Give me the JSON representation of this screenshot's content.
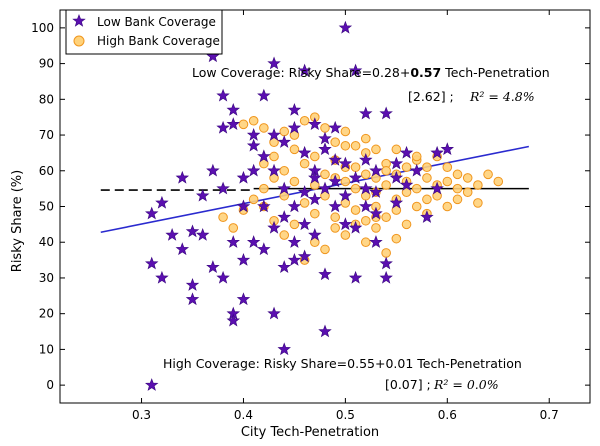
{
  "chart_data": {
    "type": "scatter",
    "xlabel": "City Tech-Penetration",
    "ylabel": "Risky Share (%)",
    "xlim": [
      0.22,
      0.74
    ],
    "ylim": [
      -5,
      105
    ],
    "x_ticks": [
      "0.3",
      "0.4",
      "0.5",
      "0.6",
      "0.7"
    ],
    "x_tick_values": [
      0.3,
      0.4,
      0.5,
      0.6,
      0.7
    ],
    "y_ticks": [
      "0",
      "10",
      "20",
      "30",
      "40",
      "50",
      "60",
      "70",
      "80",
      "90",
      "100"
    ],
    "y_tick_values": [
      0,
      10,
      20,
      30,
      40,
      50,
      60,
      70,
      80,
      90,
      100
    ],
    "legend": {
      "placement": "top-left",
      "entries": [
        {
          "label": "Low Bank Coverage",
          "marker": "star",
          "color": "#5b0fb0"
        },
        {
          "label": "High Bank Coverage",
          "marker": "circle",
          "color": "#ffd27a"
        }
      ]
    },
    "annotations": {
      "low": {
        "prefix": "Low Coverage: Risky Share=0.28+",
        "bold": "0.57",
        "suffix": " Tech-Penetration",
        "stat": "[2.62] ;",
        "r2": "R² = 4.8%"
      },
      "high": {
        "line": "High Coverage: Risky Share=0.55+0.01 Tech-Penetration",
        "stat": "[0.07] ;",
        "r2": "R² = 0.0%"
      }
    },
    "fits": [
      {
        "series": "Low Bank Coverage",
        "style": "solid",
        "color": "#2a2acf",
        "x": [
          0.26,
          0.68
        ],
        "y": [
          42.8,
          66.8
        ]
      },
      {
        "series": "High Bank Coverage",
        "style": "dashed",
        "color": "#000000",
        "x": [
          0.26,
          0.41
        ],
        "y": [
          54.6,
          54.6
        ]
      },
      {
        "series": "High Bank Coverage",
        "style": "solid",
        "color": "#000000",
        "x": [
          0.41,
          0.68
        ],
        "y": [
          55.0,
          55.0
        ]
      }
    ],
    "series": [
      {
        "name": "High Bank Coverage",
        "marker": "circle",
        "fill": "#ffd27a",
        "stroke": "#f0961e",
        "points": [
          [
            0.38,
            47
          ],
          [
            0.39,
            44
          ],
          [
            0.4,
            49
          ],
          [
            0.41,
            52
          ],
          [
            0.42,
            50
          ],
          [
            0.42,
            55
          ],
          [
            0.43,
            58
          ],
          [
            0.43,
            46
          ],
          [
            0.44,
            53
          ],
          [
            0.44,
            60
          ],
          [
            0.45,
            45
          ],
          [
            0.45,
            57
          ],
          [
            0.46,
            51
          ],
          [
            0.46,
            62
          ],
          [
            0.47,
            48
          ],
          [
            0.47,
            56
          ],
          [
            0.48,
            53
          ],
          [
            0.48,
            59
          ],
          [
            0.49,
            47
          ],
          [
            0.49,
            63
          ],
          [
            0.5,
            51
          ],
          [
            0.5,
            57
          ],
          [
            0.5,
            67
          ],
          [
            0.51,
            49
          ],
          [
            0.51,
            55
          ],
          [
            0.51,
            61
          ],
          [
            0.52,
            46
          ],
          [
            0.52,
            53
          ],
          [
            0.52,
            65
          ],
          [
            0.53,
            50
          ],
          [
            0.53,
            58
          ],
          [
            0.53,
            54
          ],
          [
            0.54,
            47
          ],
          [
            0.54,
            62
          ],
          [
            0.54,
            56
          ],
          [
            0.55,
            52
          ],
          [
            0.55,
            59
          ],
          [
            0.55,
            49
          ],
          [
            0.56,
            54
          ],
          [
            0.56,
            61
          ],
          [
            0.56,
            57
          ],
          [
            0.57,
            50
          ],
          [
            0.57,
            55
          ],
          [
            0.57,
            63
          ],
          [
            0.58,
            52
          ],
          [
            0.58,
            58
          ],
          [
            0.58,
            48
          ],
          [
            0.59,
            56
          ],
          [
            0.59,
            53
          ],
          [
            0.6,
            57
          ],
          [
            0.6,
            50
          ],
          [
            0.6,
            61
          ],
          [
            0.61,
            55
          ],
          [
            0.61,
            52
          ],
          [
            0.62,
            58
          ],
          [
            0.62,
            54
          ],
          [
            0.63,
            51
          ],
          [
            0.63,
            56
          ],
          [
            0.64,
            59
          ],
          [
            0.65,
            57
          ],
          [
            0.4,
            73
          ],
          [
            0.41,
            74
          ],
          [
            0.42,
            72
          ],
          [
            0.43,
            68
          ],
          [
            0.44,
            71
          ],
          [
            0.45,
            70
          ],
          [
            0.46,
            74
          ],
          [
            0.47,
            75
          ],
          [
            0.48,
            72
          ],
          [
            0.49,
            68
          ],
          [
            0.5,
            71
          ],
          [
            0.51,
            67
          ],
          [
            0.52,
            69
          ],
          [
            0.53,
            66
          ],
          [
            0.55,
            66
          ],
          [
            0.57,
            64
          ],
          [
            0.59,
            64
          ],
          [
            0.44,
            42
          ],
          [
            0.47,
            40
          ],
          [
            0.49,
            44
          ],
          [
            0.5,
            42
          ],
          [
            0.52,
            40
          ],
          [
            0.53,
            44
          ],
          [
            0.54,
            37
          ],
          [
            0.55,
            41
          ],
          [
            0.56,
            45
          ],
          [
            0.48,
            38
          ],
          [
            0.46,
            35
          ],
          [
            0.51,
            45
          ],
          [
            0.53,
            47
          ],
          [
            0.42,
            62
          ],
          [
            0.43,
            64
          ],
          [
            0.45,
            66
          ],
          [
            0.47,
            64
          ],
          [
            0.49,
            58
          ],
          [
            0.5,
            61
          ],
          [
            0.52,
            59
          ],
          [
            0.54,
            60
          ],
          [
            0.58,
            61
          ],
          [
            0.61,
            59
          ]
        ]
      },
      {
        "name": "Low Bank Coverage",
        "marker": "star",
        "fill": "#5b0fb0",
        "stroke": "#3a0880",
        "points": [
          [
            0.31,
            0
          ],
          [
            0.31,
            48
          ],
          [
            0.31,
            34
          ],
          [
            0.32,
            30
          ],
          [
            0.32,
            51
          ],
          [
            0.33,
            42
          ],
          [
            0.34,
            58
          ],
          [
            0.34,
            38
          ],
          [
            0.35,
            43
          ],
          [
            0.35,
            28
          ],
          [
            0.35,
            24
          ],
          [
            0.36,
            42
          ],
          [
            0.36,
            53
          ],
          [
            0.37,
            60
          ],
          [
            0.37,
            33
          ],
          [
            0.37,
            92
          ],
          [
            0.38,
            81
          ],
          [
            0.38,
            72
          ],
          [
            0.38,
            55
          ],
          [
            0.38,
            30
          ],
          [
            0.39,
            73
          ],
          [
            0.39,
            77
          ],
          [
            0.39,
            40
          ],
          [
            0.39,
            20
          ],
          [
            0.39,
            18
          ],
          [
            0.4,
            58
          ],
          [
            0.4,
            50
          ],
          [
            0.4,
            35
          ],
          [
            0.4,
            24
          ],
          [
            0.41,
            40
          ],
          [
            0.41,
            60
          ],
          [
            0.41,
            67
          ],
          [
            0.42,
            81
          ],
          [
            0.42,
            64
          ],
          [
            0.42,
            50
          ],
          [
            0.42,
            38
          ],
          [
            0.43,
            70
          ],
          [
            0.43,
            60
          ],
          [
            0.43,
            44
          ],
          [
            0.43,
            20
          ],
          [
            0.44,
            10
          ],
          [
            0.44,
            55
          ],
          [
            0.44,
            47
          ],
          [
            0.44,
            33
          ],
          [
            0.45,
            77
          ],
          [
            0.45,
            50
          ],
          [
            0.45,
            40
          ],
          [
            0.45,
            35
          ],
          [
            0.46,
            65
          ],
          [
            0.46,
            54
          ],
          [
            0.46,
            45
          ],
          [
            0.46,
            88
          ],
          [
            0.47,
            73
          ],
          [
            0.47,
            60
          ],
          [
            0.47,
            52
          ],
          [
            0.47,
            42
          ],
          [
            0.48,
            66
          ],
          [
            0.48,
            55
          ],
          [
            0.48,
            15
          ],
          [
            0.48,
            31
          ],
          [
            0.49,
            63
          ],
          [
            0.49,
            57
          ],
          [
            0.49,
            50
          ],
          [
            0.5,
            53
          ],
          [
            0.5,
            62
          ],
          [
            0.5,
            100
          ],
          [
            0.51,
            58
          ],
          [
            0.51,
            44
          ],
          [
            0.51,
            30
          ],
          [
            0.51,
            88
          ],
          [
            0.52,
            76
          ],
          [
            0.52,
            55
          ],
          [
            0.52,
            50
          ],
          [
            0.53,
            60
          ],
          [
            0.53,
            48
          ],
          [
            0.53,
            40
          ],
          [
            0.54,
            34
          ],
          [
            0.54,
            30
          ],
          [
            0.54,
            76
          ],
          [
            0.55,
            58
          ],
          [
            0.55,
            51
          ],
          [
            0.56,
            65
          ],
          [
            0.56,
            56
          ],
          [
            0.57,
            60
          ],
          [
            0.58,
            47
          ],
          [
            0.59,
            55
          ],
          [
            0.59,
            65
          ],
          [
            0.6,
            66
          ],
          [
            0.45,
            72
          ],
          [
            0.43,
            90
          ],
          [
            0.46,
            36
          ],
          [
            0.48,
            69
          ],
          [
            0.5,
            45
          ],
          [
            0.52,
            63
          ],
          [
            0.41,
            70
          ],
          [
            0.44,
            68
          ],
          [
            0.47,
            58
          ],
          [
            0.49,
            72
          ],
          [
            0.53,
            54
          ],
          [
            0.55,
            62
          ]
        ]
      }
    ]
  }
}
